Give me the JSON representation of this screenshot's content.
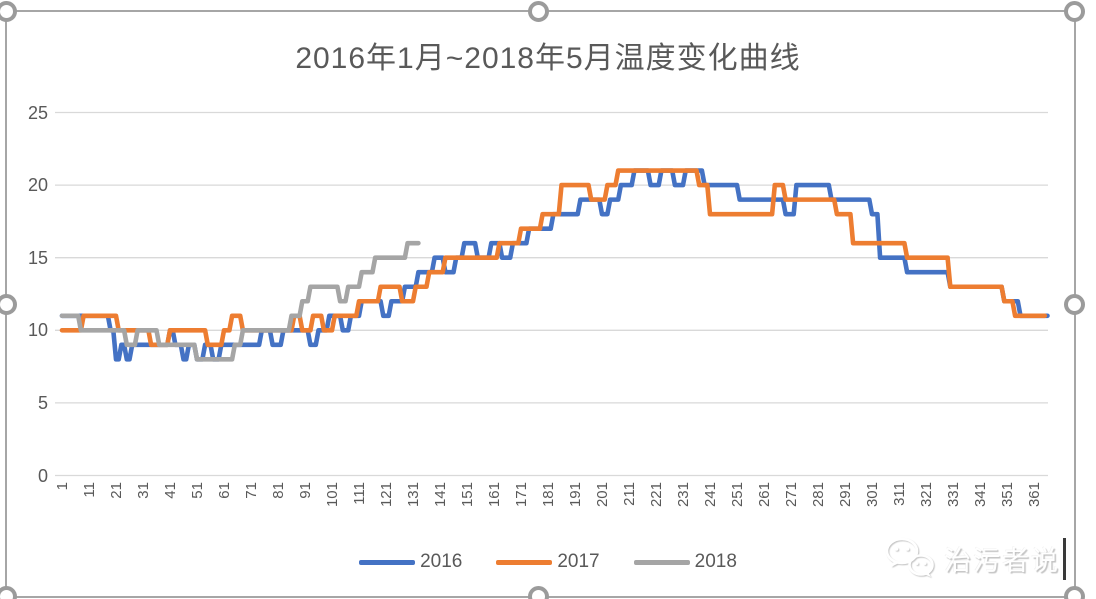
{
  "chart_data": {
    "type": "line",
    "title": "2016年1月~2018年5月温度变化曲线",
    "xlabel": "",
    "ylabel": "",
    "ylim": [
      0,
      25
    ],
    "y_tick_labels": [
      "0",
      "5",
      "10",
      "15",
      "20",
      "25"
    ],
    "y_gridline_values": [
      0,
      5,
      10,
      15,
      20,
      25
    ],
    "x_tick_labels": [
      "1",
      "11",
      "21",
      "31",
      "41",
      "51",
      "61",
      "71",
      "81",
      "91",
      "101",
      "111",
      "121",
      "131",
      "141",
      "151",
      "161",
      "171",
      "181",
      "191",
      "201",
      "211",
      "221",
      "231",
      "241",
      "251",
      "261",
      "271",
      "281",
      "291",
      "301",
      "311",
      "321",
      "331",
      "341",
      "351",
      "361"
    ],
    "x_tick_interval_days": 10,
    "grid": true,
    "legend_position": "bottom",
    "series": [
      {
        "name": "2016",
        "color": "#4472C4",
        "unit": "day-of-year",
        "segments_day_start_end_value": [
          [
            1,
            18,
            11
          ],
          [
            19,
            20,
            10
          ],
          [
            21,
            22,
            8
          ],
          [
            23,
            24,
            9
          ],
          [
            25,
            26,
            8
          ],
          [
            27,
            40,
            9
          ],
          [
            41,
            42,
            10
          ],
          [
            43,
            45,
            9
          ],
          [
            46,
            47,
            8
          ],
          [
            48,
            50,
            9
          ],
          [
            51,
            53,
            8
          ],
          [
            54,
            56,
            9
          ],
          [
            57,
            59,
            8
          ],
          [
            60,
            74,
            9
          ],
          [
            75,
            78,
            10
          ],
          [
            79,
            82,
            9
          ],
          [
            83,
            92,
            10
          ],
          [
            93,
            95,
            9
          ],
          [
            96,
            99,
            10
          ],
          [
            100,
            104,
            11
          ],
          [
            105,
            107,
            10
          ],
          [
            108,
            111,
            11
          ],
          [
            112,
            119,
            12
          ],
          [
            120,
            122,
            11
          ],
          [
            123,
            127,
            12
          ],
          [
            128,
            132,
            13
          ],
          [
            133,
            138,
            14
          ],
          [
            139,
            142,
            15
          ],
          [
            143,
            146,
            14
          ],
          [
            147,
            149,
            15
          ],
          [
            150,
            154,
            16
          ],
          [
            155,
            159,
            15
          ],
          [
            160,
            163,
            16
          ],
          [
            164,
            167,
            15
          ],
          [
            168,
            173,
            16
          ],
          [
            174,
            182,
            17
          ],
          [
            183,
            192,
            18
          ],
          [
            193,
            200,
            19
          ],
          [
            201,
            203,
            18
          ],
          [
            204,
            207,
            19
          ],
          [
            208,
            212,
            20
          ],
          [
            213,
            218,
            21
          ],
          [
            219,
            222,
            20
          ],
          [
            223,
            227,
            21
          ],
          [
            228,
            231,
            20
          ],
          [
            232,
            238,
            21
          ],
          [
            239,
            251,
            20
          ],
          [
            252,
            268,
            19
          ],
          [
            269,
            272,
            18
          ],
          [
            273,
            285,
            20
          ],
          [
            286,
            300,
            19
          ],
          [
            301,
            303,
            18
          ],
          [
            304,
            313,
            15
          ],
          [
            314,
            329,
            14
          ],
          [
            330,
            349,
            13
          ],
          [
            350,
            355,
            12
          ],
          [
            356,
            366,
            11
          ]
        ]
      },
      {
        "name": "2017",
        "color": "#ED7D31",
        "unit": "day-of-year",
        "segments_day_start_end_value": [
          [
            1,
            8,
            10
          ],
          [
            9,
            21,
            11
          ],
          [
            22,
            33,
            10
          ],
          [
            34,
            40,
            9
          ],
          [
            41,
            54,
            10
          ],
          [
            55,
            60,
            9
          ],
          [
            61,
            63,
            10
          ],
          [
            64,
            67,
            11
          ],
          [
            68,
            86,
            10
          ],
          [
            87,
            89,
            11
          ],
          [
            90,
            93,
            10
          ],
          [
            94,
            97,
            11
          ],
          [
            98,
            101,
            10
          ],
          [
            102,
            110,
            11
          ],
          [
            111,
            118,
            12
          ],
          [
            119,
            126,
            13
          ],
          [
            127,
            131,
            12
          ],
          [
            132,
            136,
            13
          ],
          [
            137,
            142,
            14
          ],
          [
            143,
            162,
            15
          ],
          [
            163,
            170,
            16
          ],
          [
            171,
            178,
            17
          ],
          [
            179,
            185,
            18
          ],
          [
            186,
            196,
            20
          ],
          [
            197,
            202,
            19
          ],
          [
            203,
            206,
            20
          ],
          [
            207,
            236,
            21
          ],
          [
            237,
            240,
            20
          ],
          [
            241,
            264,
            18
          ],
          [
            265,
            268,
            20
          ],
          [
            269,
            287,
            19
          ],
          [
            288,
            293,
            18
          ],
          [
            294,
            313,
            16
          ],
          [
            314,
            329,
            15
          ],
          [
            330,
            349,
            13
          ],
          [
            350,
            353,
            12
          ],
          [
            354,
            365,
            11
          ]
        ]
      },
      {
        "name": "2018",
        "color": "#A5A5A5",
        "unit": "day-of-year",
        "segments_day_start_end_value": [
          [
            1,
            7,
            11
          ],
          [
            8,
            24,
            10
          ],
          [
            25,
            28,
            9
          ],
          [
            29,
            36,
            10
          ],
          [
            37,
            50,
            9
          ],
          [
            51,
            64,
            8
          ],
          [
            65,
            67,
            9
          ],
          [
            68,
            85,
            10
          ],
          [
            86,
            89,
            11
          ],
          [
            90,
            92,
            12
          ],
          [
            93,
            103,
            13
          ],
          [
            104,
            106,
            12
          ],
          [
            107,
            111,
            13
          ],
          [
            112,
            116,
            14
          ],
          [
            117,
            128,
            15
          ],
          [
            129,
            133,
            16
          ]
        ]
      }
    ]
  },
  "watermark": {
    "icon": "wechat-icon",
    "text": "治污者说"
  },
  "selection": {
    "state": "chart-selected",
    "handle_count": 8
  }
}
